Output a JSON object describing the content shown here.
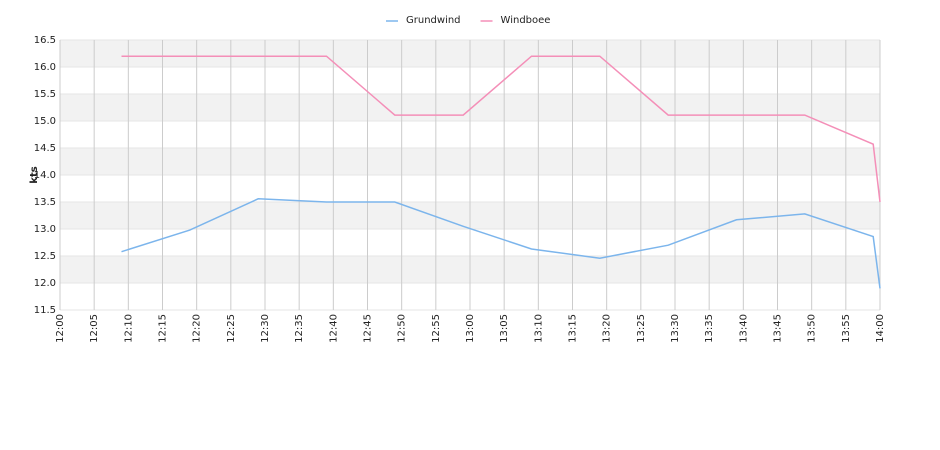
{
  "chart_data": {
    "type": "line",
    "y_label": "kts",
    "x": [
      "12:09",
      "12:19",
      "12:29",
      "12:39",
      "12:49",
      "12:59",
      "13:09",
      "13:19",
      "13:29",
      "13:39",
      "13:49",
      "13:59",
      "14:00"
    ],
    "series": [
      {
        "name": "Grundwind",
        "color": "#7cb5ec",
        "values": [
          12.58,
          12.98,
          13.56,
          13.5,
          13.5,
          13.05,
          12.63,
          12.46,
          12.7,
          13.17,
          13.28,
          12.86,
          11.9
        ]
      },
      {
        "name": "Windboee",
        "color": "#f48fb8",
        "values": [
          16.2,
          16.2,
          16.2,
          16.2,
          15.11,
          15.11,
          16.2,
          16.2,
          15.11,
          15.11,
          15.11,
          14.57,
          13.5
        ]
      }
    ],
    "xlim": [
      "12:00",
      "14:00"
    ],
    "xticks": [
      "12:00",
      "12:05",
      "12:10",
      "12:15",
      "12:20",
      "12:25",
      "12:30",
      "12:35",
      "12:40",
      "12:45",
      "12:50",
      "12:55",
      "13:00",
      "13:05",
      "13:10",
      "13:15",
      "13:20",
      "13:25",
      "13:30",
      "13:35",
      "13:40",
      "13:45",
      "13:50",
      "13:55",
      "14:00"
    ],
    "ylim": [
      11.5,
      16.5
    ],
    "yticks": [
      11.5,
      {
        "value": 12,
        "label": "12.0"
      },
      12.5,
      {
        "value": 13,
        "label": "13.0"
      },
      13.5,
      {
        "value": 14,
        "label": "14.0"
      },
      14.5,
      {
        "value": 15,
        "label": "15.0"
      },
      15.5,
      {
        "value": 16,
        "label": "16.0"
      },
      16.5
    ],
    "grid": true,
    "legend": "top"
  }
}
